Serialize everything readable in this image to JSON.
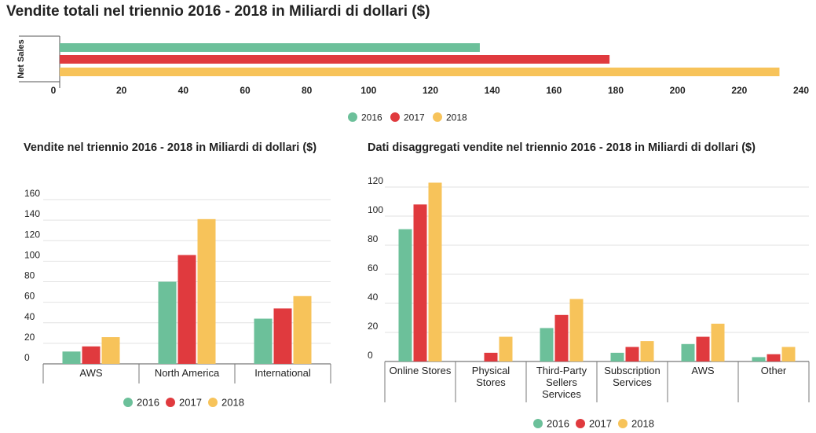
{
  "colors": {
    "2016": "#6cc09a",
    "2017": "#e03a3e",
    "2018": "#f7c35a"
  },
  "chart_data": [
    {
      "id": "top",
      "type": "bar",
      "orientation": "horizontal",
      "title": "Vendite totali nel triennio 2016 - 2018 in Miliardi di dollari ($)",
      "ylabel": "Net Sales",
      "categories": [
        "Net Sales"
      ],
      "series": [
        {
          "name": "2016",
          "values": [
            136
          ]
        },
        {
          "name": "2017",
          "values": [
            178
          ]
        },
        {
          "name": "2018",
          "values": [
            233
          ]
        }
      ],
      "xlim": [
        0,
        240
      ],
      "xticks": [
        "0",
        "20",
        "40",
        "60",
        "80",
        "100",
        "120",
        "140",
        "160",
        "180",
        "200",
        "220",
        "240"
      ],
      "legend": "bottom",
      "grid": false
    },
    {
      "id": "left",
      "type": "bar",
      "title": "Vendite nel triennio 2016 - 2018 in Miliardi di dollari ($)",
      "categories": [
        "AWS",
        "North America",
        "International"
      ],
      "series": [
        {
          "name": "2016",
          "values": [
            12,
            80,
            44
          ]
        },
        {
          "name": "2017",
          "values": [
            17,
            106,
            54
          ]
        },
        {
          "name": "2018",
          "values": [
            26,
            141,
            66
          ]
        }
      ],
      "ylim": [
        0,
        160
      ],
      "yticks": [
        "0",
        "20",
        "40",
        "60",
        "80",
        "100",
        "120",
        "140",
        "160"
      ],
      "legend": "bottom",
      "grid": true
    },
    {
      "id": "right",
      "type": "bar",
      "title": "Dati disaggregati vendite nel triennio 2016 - 2018 in Miliardi di dollari ($)",
      "categories": [
        [
          "Online Stores"
        ],
        [
          "Physical",
          "Stores"
        ],
        [
          "Third-Party",
          "Sellers",
          "Services"
        ],
        [
          "Subscription",
          "Services"
        ],
        [
          "AWS"
        ],
        [
          "Other"
        ]
      ],
      "series": [
        {
          "name": "2016",
          "values": [
            91,
            0,
            23,
            6,
            12,
            3
          ]
        },
        {
          "name": "2017",
          "values": [
            108,
            6,
            32,
            10,
            17,
            5
          ]
        },
        {
          "name": "2018",
          "values": [
            123,
            17,
            43,
            14,
            26,
            10
          ]
        }
      ],
      "ylim": [
        0,
        120
      ],
      "yticks": [
        "0",
        "20",
        "40",
        "60",
        "80",
        "100",
        "120"
      ],
      "legend": "bottom",
      "grid": true
    }
  ]
}
